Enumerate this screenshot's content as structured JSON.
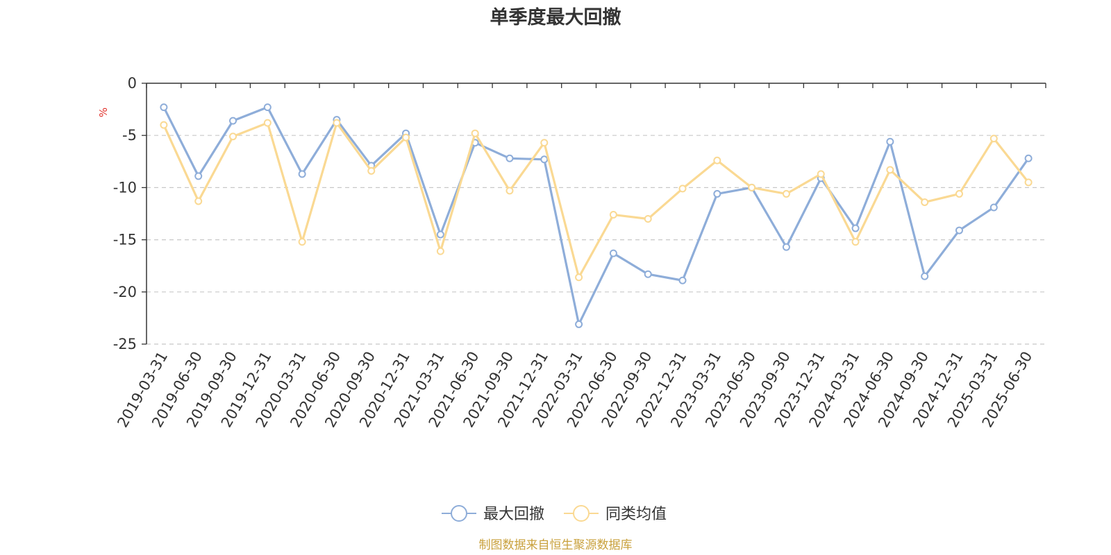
{
  "chart_data": {
    "type": "line",
    "title": "单季度最大回撤",
    "ylabel": "%",
    "ylim": [
      -25,
      0
    ],
    "yticks": [
      0,
      -5,
      -10,
      -15,
      -20,
      -25
    ],
    "ytick_labels": [
      "0",
      "-5",
      "-10",
      "-15",
      "-20",
      "-25"
    ],
    "grid": "horizontal dashed",
    "legend_position": "bottom-center",
    "categories": [
      "2019-03-31",
      "2019-06-30",
      "2019-09-30",
      "2019-12-31",
      "2020-03-31",
      "2020-06-30",
      "2020-09-30",
      "2020-12-31",
      "2021-03-31",
      "2021-06-30",
      "2021-09-30",
      "2021-12-31",
      "2022-03-31",
      "2022-06-30",
      "2022-09-30",
      "2022-12-31",
      "2023-03-31",
      "2023-06-30",
      "2023-09-30",
      "2023-12-31",
      "2024-03-31",
      "2024-06-30",
      "2024-09-30",
      "2024-12-31",
      "2025-03-31",
      "2025-06-30"
    ],
    "series": [
      {
        "name": "最大回撤",
        "color": "#8eadd9",
        "values": [
          -2.3,
          -8.9,
          -3.6,
          -2.3,
          -8.7,
          -3.5,
          -7.9,
          -4.8,
          -14.5,
          -5.7,
          -7.2,
          -7.3,
          -23.1,
          -16.3,
          -18.3,
          -18.9,
          -10.6,
          -10.0,
          -15.7,
          -9.1,
          -13.9,
          -5.6,
          -18.5,
          -14.1,
          -11.9,
          -7.2
        ]
      },
      {
        "name": "同类均值",
        "color": "#fad993",
        "values": [
          -4.0,
          -11.3,
          -5.1,
          -3.8,
          -15.2,
          -3.8,
          -8.4,
          -5.2,
          -16.1,
          -4.8,
          -10.3,
          -5.7,
          -18.6,
          -12.6,
          -13.0,
          -10.1,
          -7.4,
          -10.0,
          -10.6,
          -8.7,
          -15.2,
          -8.3,
          -11.4,
          -10.6,
          -5.3,
          -9.5
        ]
      }
    ]
  },
  "footer": {
    "source": "制图数据来自恒生聚源数据库"
  }
}
